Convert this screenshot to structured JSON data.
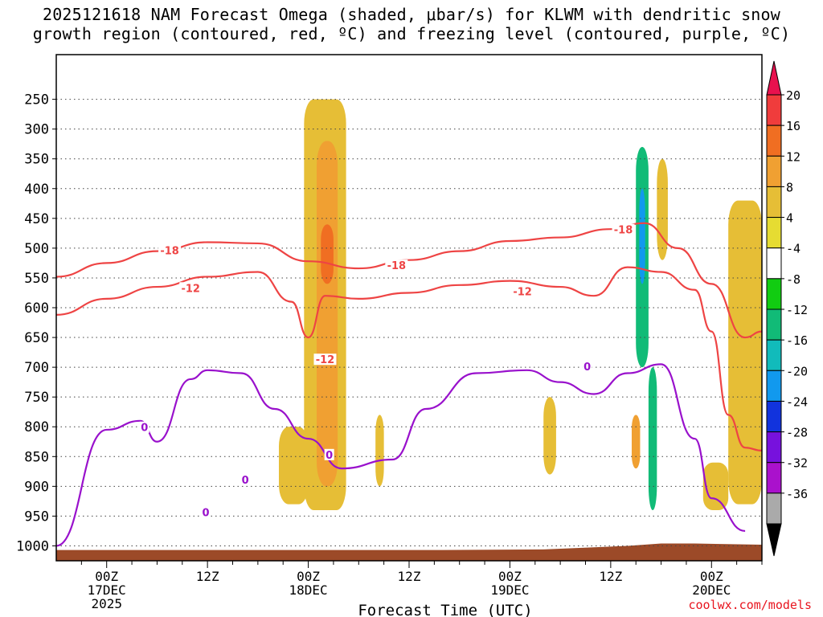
{
  "title": {
    "line1": "2025121618 NAM Forecast Omega (shaded, μbar/s) for KLWM with dendritic snow",
    "line2": "growth region (contoured, red, ºC) and freezing level (contoured, purple, ºC)"
  },
  "credit": "coolwx.com/models",
  "chart_data": {
    "type": "heatmap",
    "title": "2025121618 NAM Forecast Omega (shaded, μbar/s) for KLWM with dendritic snow growth region (contoured, red, ºC) and freezing level (contoured, purple, ºC)",
    "xlabel": "Forecast Time (UTC)",
    "ylabel": "",
    "x_range_hours": [
      -6,
      78
    ],
    "x_ticks": [
      {
        "hour": 0,
        "lines": [
          "00Z",
          "17DEC",
          "2025"
        ]
      },
      {
        "hour": 12,
        "lines": [
          "12Z"
        ]
      },
      {
        "hour": 24,
        "lines": [
          "00Z",
          "18DEC"
        ]
      },
      {
        "hour": 36,
        "lines": [
          "12Z"
        ]
      },
      {
        "hour": 48,
        "lines": [
          "00Z",
          "19DEC"
        ]
      },
      {
        "hour": 60,
        "lines": [
          "12Z"
        ]
      },
      {
        "hour": 72,
        "lines": [
          "00Z",
          "20DEC"
        ]
      }
    ],
    "y_levels": [
      250,
      300,
      350,
      400,
      450,
      500,
      550,
      600,
      650,
      700,
      750,
      800,
      850,
      900,
      950,
      1000
    ],
    "y_range_hpa": [
      175,
      1025
    ],
    "grid": true,
    "colorbar": {
      "levels": [
        20,
        16,
        12,
        8,
        4,
        -4,
        -8,
        -12,
        -16,
        -20,
        -24,
        -28,
        -32,
        -36
      ],
      "colors": [
        "#e8114e",
        "#f03c3c",
        "#f06e22",
        "#f0a032",
        "#e6be36",
        "#e6dc32",
        "#ffffff",
        "#11cc11",
        "#11bb77",
        "#11bbbb",
        "#1199ee",
        "#1133dd",
        "#7711dd",
        "#aa11cc",
        "#aaaaaa",
        "#000000"
      ],
      "position": "right"
    },
    "omega_cells": [
      {
        "t0": 15.5,
        "t1": 18.5,
        "p0": 330,
        "p1": 660,
        "v": -6
      },
      {
        "t0": 23.5,
        "t1": 28.5,
        "p0": 250,
        "p1": 940,
        "v": 5
      },
      {
        "t0": 25,
        "t1": 27.5,
        "p0": 320,
        "p1": 900,
        "v": 9
      },
      {
        "t0": 25.5,
        "t1": 27,
        "p0": 460,
        "p1": 560,
        "v": 14
      },
      {
        "t0": 29,
        "t1": 30.5,
        "p0": 340,
        "p1": 460,
        "v": -6
      },
      {
        "t0": 20.5,
        "t1": 24,
        "p0": 800,
        "p1": 930,
        "v": 5
      },
      {
        "t0": 32,
        "t1": 33,
        "p0": 780,
        "p1": 900,
        "v": 5
      },
      {
        "t0": 52,
        "t1": 53.5,
        "p0": 750,
        "p1": 880,
        "v": 5
      },
      {
        "t0": 54.5,
        "t1": 57.5,
        "p0": 380,
        "p1": 560,
        "v": -6
      },
      {
        "t0": 59.5,
        "t1": 61,
        "p0": 400,
        "p1": 560,
        "v": -6
      },
      {
        "t0": 62,
        "t1": 65,
        "p0": 300,
        "p1": 950,
        "v": -6
      },
      {
        "t0": 63,
        "t1": 64.5,
        "p0": 330,
        "p1": 700,
        "v": -14
      },
      {
        "t0": 63.4,
        "t1": 64.1,
        "p0": 400,
        "p1": 560,
        "v": -22
      },
      {
        "t0": 64.5,
        "t1": 65.5,
        "p0": 700,
        "p1": 940,
        "v": -14
      },
      {
        "t0": 65.5,
        "t1": 66.8,
        "p0": 350,
        "p1": 520,
        "v": 5
      },
      {
        "t0": 62.5,
        "t1": 63.5,
        "p0": 780,
        "p1": 870,
        "v": 9
      },
      {
        "t0": 74,
        "t1": 78,
        "p0": 420,
        "p1": 930,
        "v": 5
      },
      {
        "t0": 71,
        "t1": 74,
        "p0": 860,
        "p1": 940,
        "v": 5
      }
    ],
    "series": [
      {
        "label": "-18",
        "color": "#ee4444",
        "points": [
          [
            -6,
            548
          ],
          [
            0,
            525
          ],
          [
            6,
            505
          ],
          [
            12,
            490
          ],
          [
            18,
            492
          ],
          [
            24,
            522
          ],
          [
            30,
            534
          ],
          [
            36,
            520
          ],
          [
            42,
            505
          ],
          [
            48,
            488
          ],
          [
            54,
            482
          ],
          [
            60,
            468
          ],
          [
            64,
            458
          ],
          [
            68,
            500
          ],
          [
            72,
            560
          ],
          [
            76,
            650
          ],
          [
            78,
            640
          ]
        ]
      },
      {
        "label": "-12",
        "color": "#ee4444",
        "points": [
          [
            -6,
            612
          ],
          [
            0,
            585
          ],
          [
            6,
            565
          ],
          [
            12,
            548
          ],
          [
            18,
            540
          ],
          [
            22,
            590
          ],
          [
            24,
            650
          ],
          [
            26,
            580
          ],
          [
            30,
            585
          ],
          [
            36,
            575
          ],
          [
            42,
            562
          ],
          [
            48,
            555
          ],
          [
            54,
            565
          ],
          [
            58,
            580
          ],
          [
            62,
            532
          ],
          [
            66,
            540
          ],
          [
            70,
            570
          ],
          [
            72,
            640
          ],
          [
            74,
            780
          ],
          [
            76,
            835
          ],
          [
            78,
            840
          ]
        ]
      },
      {
        "label": "0",
        "color": "#9911cc",
        "points": [
          [
            -6,
            1000
          ],
          [
            0,
            805
          ],
          [
            4,
            790
          ],
          [
            6,
            825
          ],
          [
            10,
            720
          ],
          [
            12,
            705
          ],
          [
            16,
            710
          ],
          [
            20,
            770
          ],
          [
            24,
            820
          ],
          [
            28,
            870
          ],
          [
            34,
            855
          ],
          [
            38,
            770
          ],
          [
            44,
            710
          ],
          [
            50,
            705
          ],
          [
            54,
            725
          ],
          [
            58,
            745
          ],
          [
            62,
            710
          ],
          [
            66,
            695
          ],
          [
            70,
            820
          ],
          [
            72,
            920
          ],
          [
            76,
            975
          ]
        ]
      }
    ],
    "contour_labels": [
      {
        "text": "-18",
        "hour": 7.5,
        "p": 505,
        "color": "#ee4444"
      },
      {
        "text": "-12",
        "hour": 10,
        "p": 568,
        "color": "#ee4444"
      },
      {
        "text": "-12",
        "hour": 26,
        "p": 688,
        "color": "#ee4444"
      },
      {
        "text": "-18",
        "hour": 34.5,
        "p": 530,
        "color": "#ee4444"
      },
      {
        "text": "-12",
        "hour": 49.5,
        "p": 574,
        "color": "#ee4444"
      },
      {
        "text": "-18",
        "hour": 61.5,
        "p": 470,
        "color": "#ee4444"
      },
      {
        "text": "0",
        "hour": 4.5,
        "p": 802,
        "color": "#9911cc"
      },
      {
        "text": "0",
        "hour": 26.5,
        "p": 848,
        "color": "#9911cc"
      },
      {
        "text": "0",
        "hour": 16.5,
        "p": 890,
        "color": "#9911cc"
      },
      {
        "text": "0",
        "hour": 11.8,
        "p": 945,
        "color": "#9911cc"
      },
      {
        "text": "0",
        "hour": 57.2,
        "p": 700,
        "color": "#9911cc"
      }
    ],
    "terrain": {
      "color": "#9c4a28"
    }
  }
}
